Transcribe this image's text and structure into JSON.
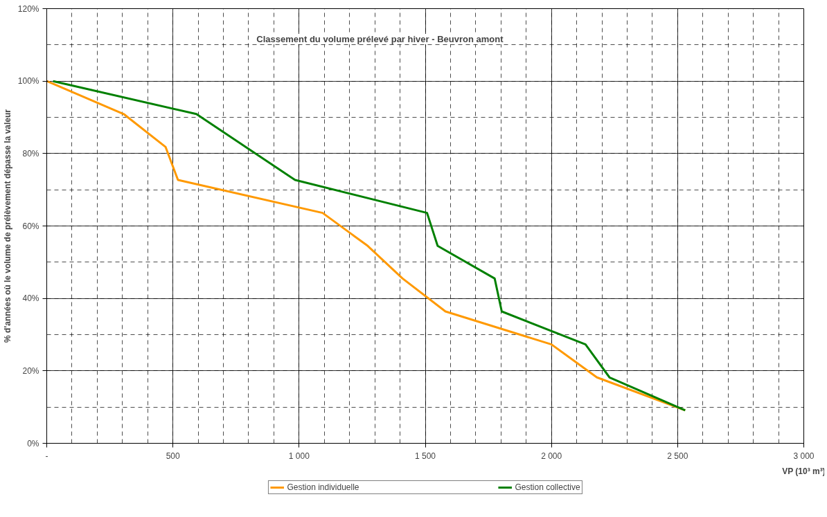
{
  "chart_data": {
    "type": "line",
    "title": "Classement du volume prélevé par hiver - Beuvron amont",
    "xlabel": "VP (10³ m³)",
    "ylabel": "% d'années où le volume de prélèvement dépasse la valeur",
    "xlim": [
      0,
      3000
    ],
    "ylim": [
      0,
      120
    ],
    "xticks": [
      {
        "value": 0,
        "label": "-"
      },
      500,
      {
        "value": 1000,
        "label": "1 000"
      },
      {
        "value": 1500,
        "label": "1 500"
      },
      {
        "value": 2000,
        "label": "2 000"
      },
      {
        "value": 2500,
        "label": "2 500"
      },
      {
        "value": 3000,
        "label": "3 000"
      }
    ],
    "yticks": [
      {
        "value": 0,
        "label": "0%"
      },
      {
        "value": 20,
        "label": "20%"
      },
      {
        "value": 40,
        "label": "40%"
      },
      {
        "value": 60,
        "label": "60%"
      },
      {
        "value": 80,
        "label": "80%"
      },
      {
        "value": 100,
        "label": "100%"
      },
      {
        "value": 120,
        "label": "120%"
      }
    ],
    "grid": true,
    "legend": "bottom",
    "marker": "none",
    "line_style": "solid",
    "series": [
      {
        "name": "Gestion individuelle",
        "color": "#ff9900",
        "x": [
          0,
          305,
          471,
          520,
          1093,
          1272,
          1410,
          1580,
          2000,
          2180,
          2530
        ],
        "values": [
          100,
          90.9,
          81.8,
          72.7,
          63.6,
          54.5,
          45.5,
          36.4,
          27.3,
          18.2,
          9.1
        ]
      },
      {
        "name": "Gestion collective",
        "color": "#008000",
        "x": [
          25,
          593,
          984,
          1507,
          1549,
          1775,
          1803,
          2135,
          2230,
          2530
        ],
        "values": [
          100,
          90.9,
          72.7,
          63.6,
          54.5,
          45.5,
          36.4,
          27.3,
          18.2,
          9.1
        ]
      }
    ]
  }
}
